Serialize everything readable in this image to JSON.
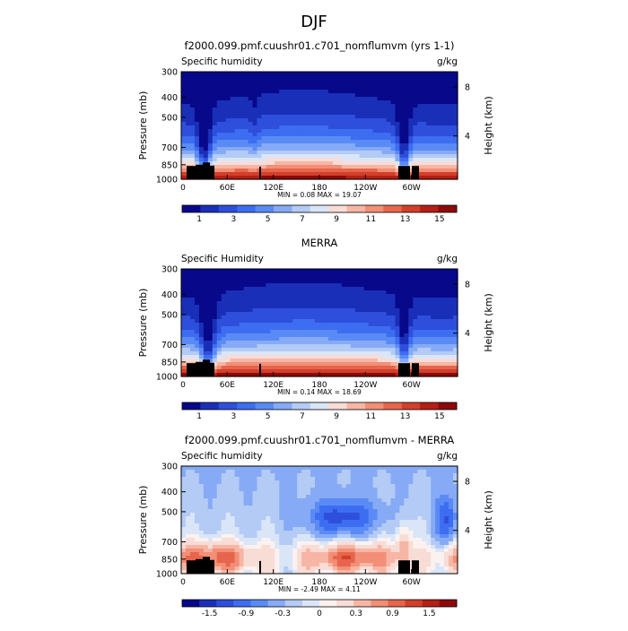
{
  "page_title": "DJF",
  "colors": {
    "seq_palette": [
      "#08088a",
      "#1a2fb8",
      "#2e4fdc",
      "#3d6df0",
      "#5a8bf5",
      "#86aaf5",
      "#b3cbf5",
      "#dae6f8",
      "#f8dcd6",
      "#f7b6a5",
      "#f28f76",
      "#e6654c",
      "#d23f2b",
      "#b51f15",
      "#8c0a0a"
    ],
    "diff_palette": [
      "#08088a",
      "#1a2fb8",
      "#2e4fdc",
      "#3d6df0",
      "#5a8bf5",
      "#86aaf5",
      "#b3cbf5",
      "#dae6f8",
      "#fbf2f0",
      "#f8dcd6",
      "#f7b6a5",
      "#f28f76",
      "#e6654c",
      "#d23f2b",
      "#b51f15",
      "#8c0a0a"
    ],
    "terrain": "#000000"
  },
  "chart_data": [
    {
      "type": "heatmap",
      "title": "f2000.099.pmf.cuushr01.c701_nomflumvm (yrs 1-1)",
      "subtitle": "Specific humidity",
      "units": "g/kg",
      "ylabel": "Pressure (mb)",
      "ylabel_right": "Height (km)",
      "yticks": [
        300,
        400,
        500,
        700,
        850,
        1000
      ],
      "yticks_right": [
        8,
        4
      ],
      "xticks": [
        "0",
        "60E",
        "120E",
        "180",
        "120W",
        "60W"
      ],
      "stats": "MIN =     0.08   MAX =    19.07",
      "colorbar_labels": [
        "1",
        "3",
        "5",
        "7",
        "9",
        "11",
        "13",
        "15"
      ],
      "colorbar_min": 0,
      "colorbar_max": 16,
      "field": "model"
    },
    {
      "type": "heatmap",
      "title": "MERRA",
      "subtitle": "Specific Humidity",
      "units": "g/kg",
      "ylabel": "Pressure (mb)",
      "ylabel_right": "Height (km)",
      "yticks": [
        300,
        400,
        500,
        700,
        850,
        1000
      ],
      "yticks_right": [
        8,
        4
      ],
      "xticks": [
        "0",
        "60E",
        "120E",
        "180",
        "120W",
        "60W"
      ],
      "stats": "MIN =     0.14   MAX =    18.69",
      "colorbar_labels": [
        "1",
        "3",
        "5",
        "7",
        "9",
        "11",
        "13",
        "15"
      ],
      "colorbar_min": 0,
      "colorbar_max": 16,
      "field": "obs"
    },
    {
      "type": "heatmap",
      "title": "f2000.099.pmf.cuushr01.c701_nomflumvm - MERRA",
      "subtitle": "Specific humidity",
      "units": "g/kg",
      "ylabel": "Pressure (mb)",
      "ylabel_right": "Height (km)",
      "yticks": [
        300,
        400,
        500,
        700,
        850,
        1000
      ],
      "yticks_right": [
        8,
        4
      ],
      "xticks": [
        "0",
        "60E",
        "120E",
        "180",
        "120W",
        "60W"
      ],
      "stats": "MIN =    -2.49   MAX =     4.11",
      "colorbar_labels": [
        "-1.5",
        "-0.9",
        "-0.3",
        "0",
        "0.3",
        "0.9",
        "1.5"
      ],
      "colorbar_min": -2.1,
      "colorbar_max": 2.1,
      "field": "diff"
    }
  ]
}
